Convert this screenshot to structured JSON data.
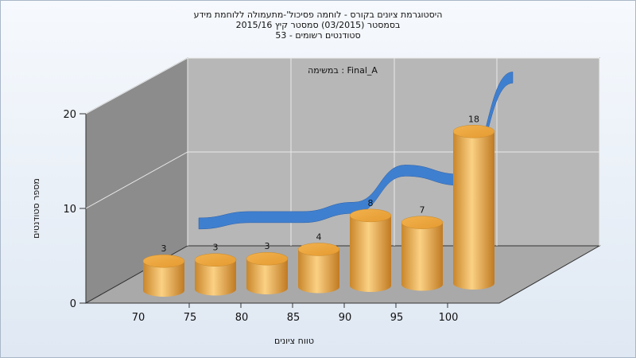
{
  "chart_data": {
    "type": "bar",
    "title": [
      "היסטוגרמת ציונים בקורס - לוחמה פסיכול'-מתעמולה ללוחמת מידע",
      "בסמסטר  (03/2015)  סמסטר קיץ 2015/16",
      "סטודנטים רשומים - 53"
    ],
    "xlabel": "טווח ציונים",
    "ylabel": "מספר סטודנטים",
    "categories": [
      "70",
      "75",
      "80",
      "85",
      "90",
      "95",
      "100"
    ],
    "ylim": [
      0,
      20
    ],
    "y_ticks": [
      "0",
      "10",
      "20"
    ],
    "series": [
      {
        "name": "Final_A : במשימה",
        "values": [
          3,
          3,
          3,
          4,
          8,
          7,
          18
        ]
      }
    ],
    "data_labels": [
      "3",
      "3",
      "3",
      "4",
      "8",
      "7",
      "18"
    ],
    "grid": true,
    "legend": "top-center",
    "colors": {
      "bar": "#e8a640",
      "curve": "#3f7fcf",
      "wall": "#b6b6b6"
    }
  }
}
